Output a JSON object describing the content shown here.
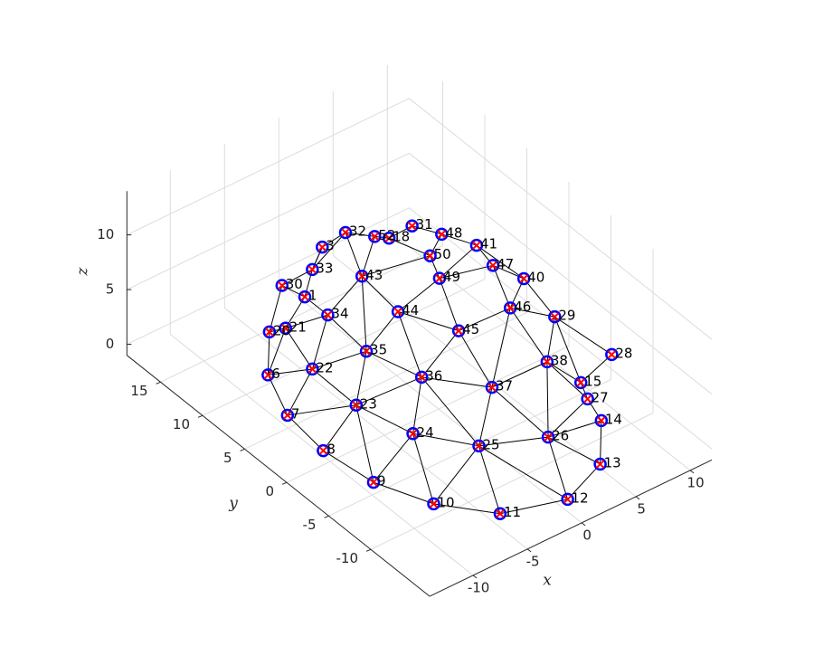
{
  "chart_data": {
    "type": "scatter3",
    "xlabel": "x",
    "ylabel": "y",
    "zlabel": "z",
    "xlim": [
      -14,
      12
    ],
    "ylim": [
      -17,
      19
    ],
    "zlim": [
      -1,
      14
    ],
    "xticks": [
      -10,
      -5,
      0,
      5,
      10
    ],
    "yticks": [
      -10,
      -5,
      0,
      5,
      10,
      15
    ],
    "zticks": [
      0,
      5,
      10
    ],
    "grid": true,
    "node_color": "#0000ff",
    "marker_color": "#ff0000",
    "edge_color": "#000000",
    "nodes": {
      "labels": [
        "6",
        "7",
        "8",
        "9",
        "10",
        "11",
        "12",
        "13",
        "14",
        "27",
        "15",
        "28",
        "26",
        "25",
        "24",
        "23",
        "22",
        "21",
        "20",
        "30",
        "33",
        "34",
        "35",
        "36",
        "37",
        "38",
        "29",
        "45",
        "44",
        "46",
        "40",
        "49",
        "43",
        "47",
        "41",
        "50",
        "48",
        "31",
        "18",
        "52",
        "32",
        "3",
        "1"
      ],
      "x": [
        -8.9,
        -9.9,
        -10.4,
        -9.8,
        -7.9,
        -4.8,
        0.1,
        4.5,
        7.7,
        6.9,
        6.9,
        9.9,
        1.1,
        -3.5,
        -6.4,
        -7.6,
        -8.3,
        -6.9,
        -7.3,
        -5.6,
        -3.5,
        -5.1,
        -5.5,
        -4.2,
        -0.9,
        4.1,
        6.2,
        -1.1,
        -3.2,
        3.5,
        5.6,
        0.0,
        -3.5,
        4.0,
        4.5,
        0.3,
        3.3,
        2.2,
        0.0,
        -0.7,
        -1.3,
        -2.9,
        -5.9
      ],
      "y": [
        8.8,
        5.2,
        0.3,
        -4.9,
        -9.6,
        -13.5,
        -15.2,
        -13.4,
        -9.4,
        -8.8,
        -8.0,
        -7.8,
        -11.6,
        -9.3,
        -5.2,
        0.0,
        4.3,
        9.3,
        10.7,
        11.4,
        10.5,
        6.6,
        1.5,
        -3.4,
        -7.5,
        -7.6,
        -5.8,
        -3.8,
        0.7,
        -4.0,
        -2.9,
        -0.1,
        4.6,
        -1.3,
        1.3,
        1.4,
        3.9,
        6.0,
        5.9,
        6.7,
        9.4,
        10.1,
        8.3
      ],
      "z": [
        1,
        0,
        0,
        0,
        0,
        0,
        0,
        0,
        0,
        2,
        3,
        4,
        3,
        3,
        3,
        3,
        4,
        4,
        3,
        6,
        7,
        6,
        6,
        6,
        6,
        6,
        8,
        9,
        9,
        9,
        10,
        11,
        10,
        11,
        11,
        12,
        11,
        11,
        11,
        11,
        10,
        9,
        7
      ]
    },
    "edges": [
      [
        0,
        1
      ],
      [
        1,
        2
      ],
      [
        2,
        3
      ],
      [
        3,
        4
      ],
      [
        4,
        5
      ],
      [
        5,
        6
      ],
      [
        6,
        7
      ],
      [
        7,
        8
      ],
      [
        8,
        9
      ],
      [
        9,
        10
      ],
      [
        10,
        11
      ],
      [
        0,
        16
      ],
      [
        1,
        16
      ],
      [
        1,
        15
      ],
      [
        2,
        15
      ],
      [
        3,
        15
      ],
      [
        3,
        14
      ],
      [
        4,
        14
      ],
      [
        4,
        13
      ],
      [
        5,
        13
      ],
      [
        6,
        13
      ],
      [
        6,
        12
      ],
      [
        7,
        12
      ],
      [
        8,
        12
      ],
      [
        9,
        12
      ],
      [
        12,
        13
      ],
      [
        13,
        14
      ],
      [
        14,
        15
      ],
      [
        15,
        16
      ],
      [
        16,
        17
      ],
      [
        17,
        18
      ],
      [
        0,
        17
      ],
      [
        0,
        18
      ],
      [
        16,
        22
      ],
      [
        15,
        22
      ],
      [
        15,
        23
      ],
      [
        14,
        23
      ],
      [
        13,
        23
      ],
      [
        13,
        24
      ],
      [
        12,
        24
      ],
      [
        12,
        25
      ],
      [
        9,
        25
      ],
      [
        10,
        25
      ],
      [
        11,
        26
      ],
      [
        10,
        26
      ],
      [
        22,
        23
      ],
      [
        23,
        24
      ],
      [
        24,
        25
      ],
      [
        25,
        26
      ],
      [
        21,
        22
      ],
      [
        16,
        21
      ],
      [
        17,
        21
      ],
      [
        17,
        42
      ],
      [
        18,
        19
      ],
      [
        19,
        42
      ],
      [
        19,
        20
      ],
      [
        20,
        42
      ],
      [
        21,
        42
      ],
      [
        20,
        41
      ],
      [
        20,
        40
      ],
      [
        21,
        32
      ],
      [
        22,
        32
      ],
      [
        22,
        28
      ],
      [
        23,
        28
      ],
      [
        23,
        27
      ],
      [
        24,
        27
      ],
      [
        24,
        29
      ],
      [
        25,
        29
      ],
      [
        26,
        29
      ],
      [
        26,
        30
      ],
      [
        27,
        28
      ],
      [
        27,
        29
      ],
      [
        27,
        31
      ],
      [
        28,
        31
      ],
      [
        28,
        32
      ],
      [
        29,
        30
      ],
      [
        29,
        33
      ],
      [
        30,
        33
      ],
      [
        31,
        33
      ],
      [
        31,
        35
      ],
      [
        32,
        35
      ],
      [
        32,
        39
      ],
      [
        35,
        38
      ],
      [
        35,
        36
      ],
      [
        36,
        34
      ],
      [
        34,
        33
      ],
      [
        36,
        37
      ],
      [
        37,
        38
      ],
      [
        38,
        39
      ],
      [
        39,
        40
      ],
      [
        40,
        41
      ],
      [
        41,
        20
      ],
      [
        32,
        40
      ],
      [
        31,
        34
      ],
      [
        30,
        34
      ]
    ]
  }
}
